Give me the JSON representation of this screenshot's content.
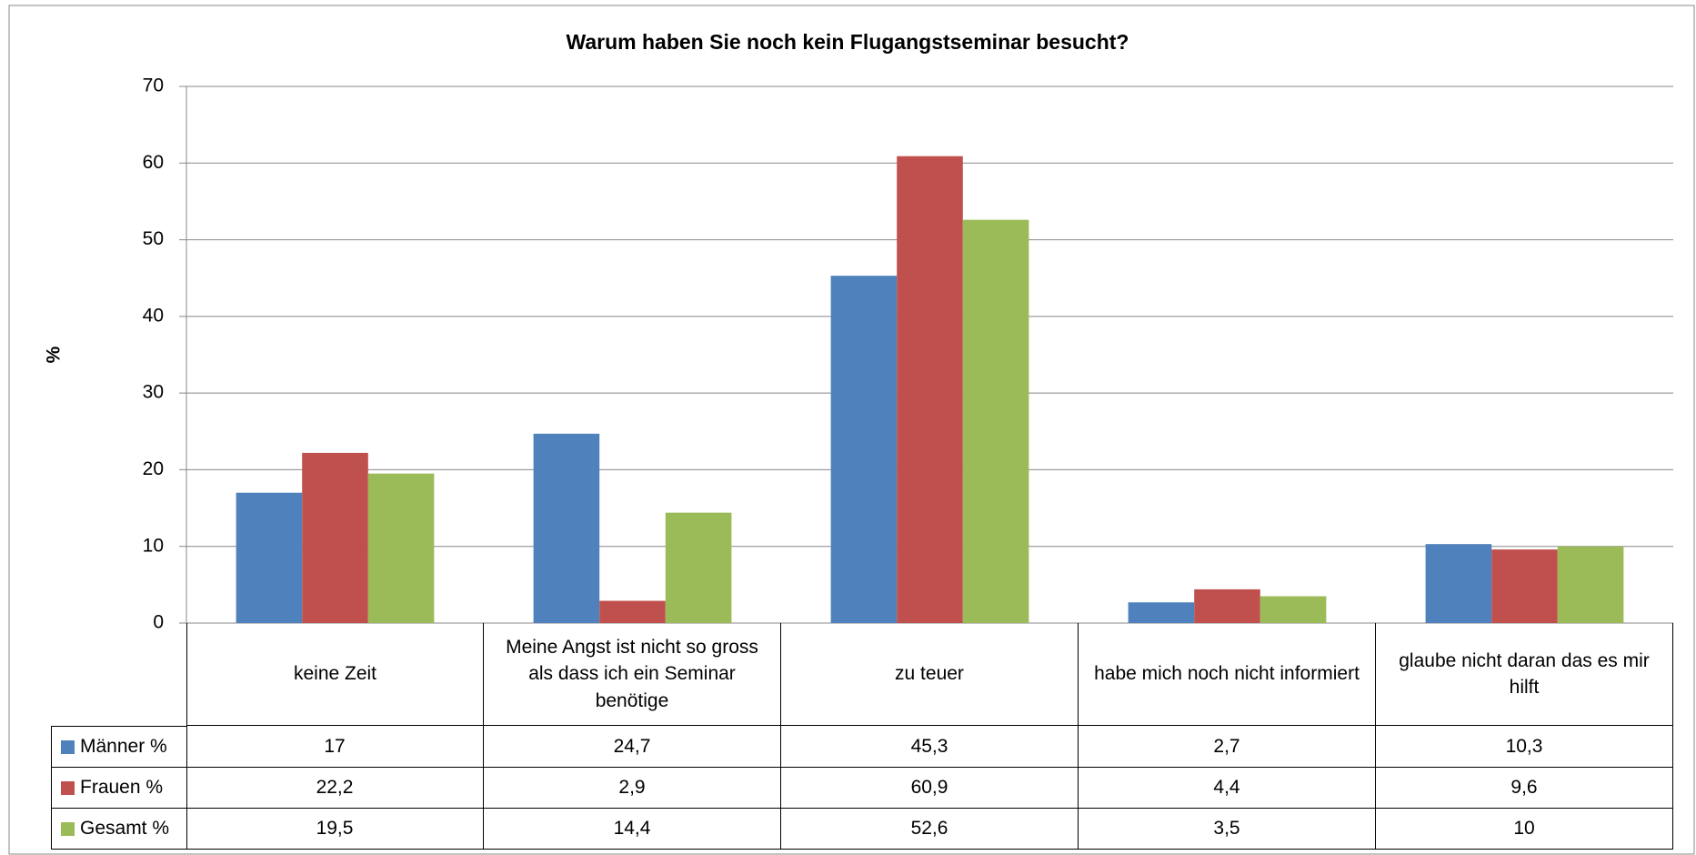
{
  "chart_data": {
    "type": "bar",
    "title": "Warum haben Sie noch kein Flugangstseminar besucht?",
    "y_label": "%",
    "categories": [
      "keine Zeit",
      "Meine Angst ist nicht so gross als dass ich ein Seminar benötige",
      "zu teuer",
      "habe mich noch nicht informiert",
      "glaube nicht daran das es mir hilft"
    ],
    "series": [
      {
        "name": "Männer %",
        "color": "#4f81bd",
        "values": [
          17,
          24.7,
          45.3,
          2.7,
          10.3
        ],
        "value_labels": [
          "17",
          "24,7",
          "45,3",
          "2,7",
          "10,3"
        ]
      },
      {
        "name": "Frauen %",
        "color": "#c0504d",
        "values": [
          22.2,
          2.9,
          60.9,
          4.4,
          9.6
        ],
        "value_labels": [
          "22,2",
          "2,9",
          "60,9",
          "4,4",
          "9,6"
        ]
      },
      {
        "name": "Gesamt %",
        "color": "#9bbb59",
        "values": [
          19.5,
          14.4,
          52.6,
          3.5,
          10
        ],
        "value_labels": [
          "19,5",
          "14,4",
          "52,6",
          "3,5",
          "10"
        ]
      }
    ],
    "ylim": [
      0,
      70
    ],
    "yticks": [
      0,
      10,
      20,
      30,
      40,
      50,
      60,
      70
    ],
    "grid": true,
    "legend": "table"
  }
}
